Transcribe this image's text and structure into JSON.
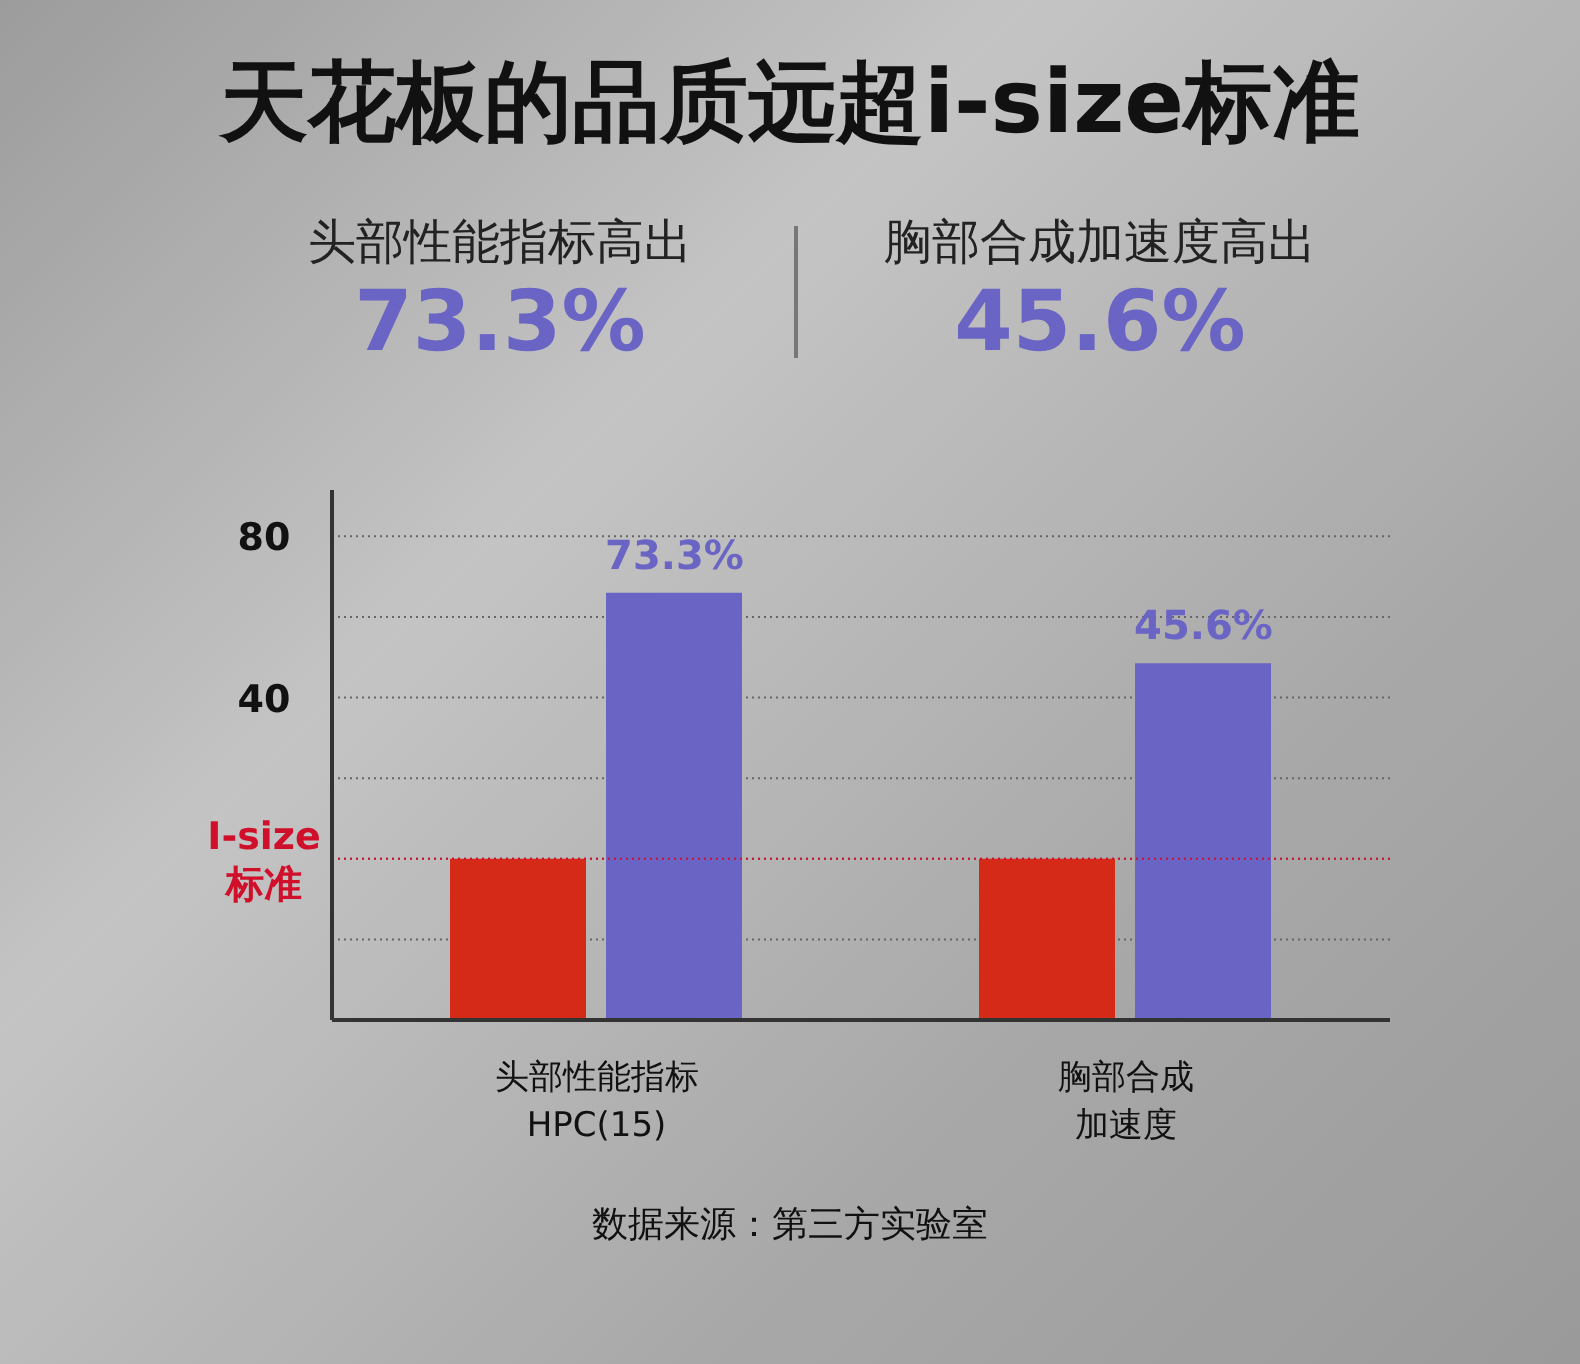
{
  "chart_data": {
    "type": "bar",
    "title": "天花板的品质远超i-size标准",
    "annotations": [
      "头部性能指标高出",
      "73.3%",
      "胸部合成加速度高出",
      "45.6%",
      "数据来源：第三方实验室",
      {
        "text": "73.3%",
        "x": "头部性能指标HPC(15)",
        "y": 66
      },
      {
        "text": "45.6%",
        "x": "胸部合成加速度",
        "y": 48.5
      }
    ],
    "categories": [
      "头部性能指标HPC(15)",
      "胸部合成加速度"
    ],
    "series": [
      {
        "color": "#d62a18",
        "values": [
          40,
          40
        ],
        "base": [
          -40,
          -40
        ]
      },
      {
        "color": "#6a64c4",
        "values": [
          106,
          88.5
        ],
        "base": [
          -40,
          -40
        ]
      }
    ],
    "ylim": [
      -40,
      91.5
    ],
    "yticks": [
      {
        "value": -20,
        "label": null
      },
      {
        "value": 0,
        "label": "I-size\n标准"
      },
      {
        "value": 20,
        "label": null
      },
      40,
      {
        "value": 60,
        "label": null
      },
      80
    ],
    "grid": "y",
    "ref_lines": [
      {
        "axis": "y",
        "value": 0,
        "color": "#d0102a"
      }
    ]
  }
}
